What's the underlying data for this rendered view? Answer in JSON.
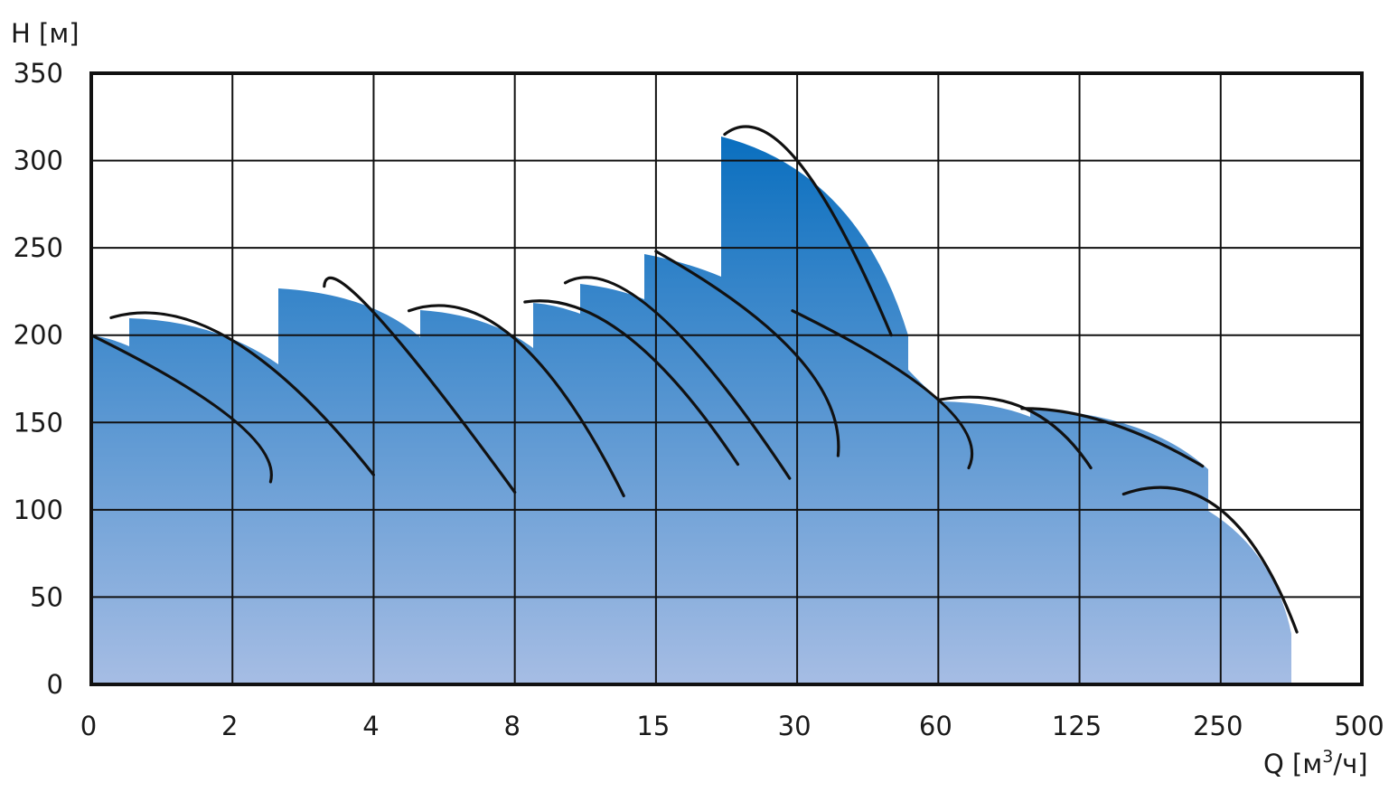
{
  "chart_data": {
    "type": "area",
    "title": "",
    "xlabel": "Q [м",
    "xlabel_sup": "3",
    "xlabel_suffix": "/ч]",
    "ylabel": "H [м]",
    "x_scale": "custom-categorical",
    "x_ticks": [
      "0",
      "2",
      "4",
      "8",
      "15",
      "30",
      "60",
      "125",
      "250",
      "500"
    ],
    "y_ticks": [
      "0",
      "50",
      "100",
      "150",
      "200",
      "250",
      "300",
      "350"
    ],
    "ylim": [
      0,
      350
    ],
    "grid": true,
    "colors": {
      "fill_top": "#0a6fbf",
      "fill_bottom": "#a6bde4",
      "line": "#111111",
      "grid": "#111111"
    },
    "curves": [
      {
        "name": "",
        "points": [
          [
            0,
            200
          ],
          [
            2,
            152
          ],
          [
            2.54,
            116
          ]
        ]
      },
      {
        "name": "",
        "points": [
          [
            0.28,
            210
          ],
          [
            2,
            197
          ],
          [
            4,
            120
          ],
          [
            4.14,
            99
          ]
        ]
      },
      {
        "name": "",
        "points": [
          [
            3.3,
            228
          ],
          [
            4,
            213
          ],
          [
            8,
            110
          ]
        ]
      },
      {
        "name": "",
        "points": [
          [
            5.0,
            214
          ],
          [
            8,
            198
          ],
          [
            13.4,
            108
          ]
        ]
      },
      {
        "name": "",
        "points": [
          [
            8.5,
            219
          ],
          [
            13.5,
            200
          ],
          [
            23.7,
            126
          ]
        ]
      },
      {
        "name": "",
        "points": [
          [
            10.5,
            230
          ],
          [
            15,
            213
          ],
          [
            29.2,
            118
          ]
        ]
      },
      {
        "name": "",
        "points": [
          [
            15,
            248
          ],
          [
            30,
            188
          ],
          [
            38.7,
            131
          ]
        ]
      },
      {
        "name": "",
        "points": [
          [
            22.3,
            315
          ],
          [
            30,
            300
          ],
          [
            50,
            200
          ]
        ]
      },
      {
        "name": "",
        "points": [
          [
            29.5,
            214
          ],
          [
            60,
            163
          ],
          [
            74,
            124
          ]
        ]
      },
      {
        "name": "",
        "points": [
          [
            60.4,
            163
          ],
          [
            100,
            158
          ],
          [
            135,
            124
          ]
        ]
      },
      {
        "name": "",
        "points": [
          [
            98.5,
            158
          ],
          [
            150,
            150
          ],
          [
            234,
            125
          ]
        ]
      },
      {
        "name": "",
        "points": [
          [
            164,
            109
          ],
          [
            250,
            100
          ],
          [
            385,
            30
          ]
        ]
      }
    ]
  }
}
